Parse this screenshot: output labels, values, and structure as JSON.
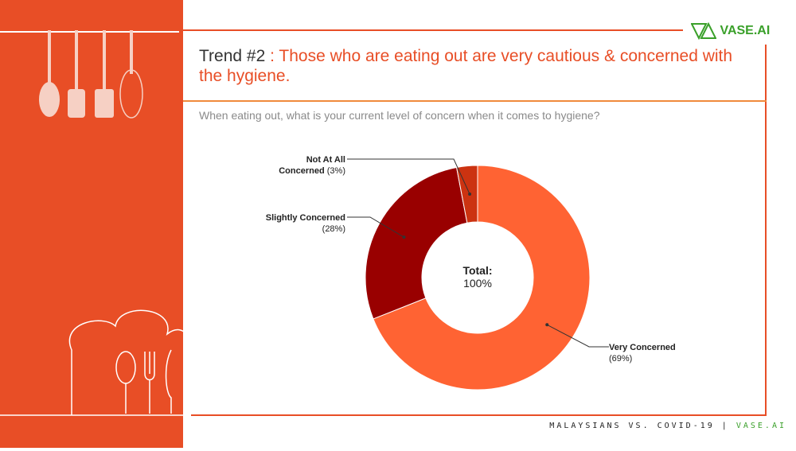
{
  "header": {
    "trend": "Trend #2",
    "headline": ": Those who are eating out are very cautious & concerned with the hygiene.",
    "question": "When eating out, what is your current level of concern when it comes to hygiene?"
  },
  "logo": {
    "text": "VASE.AI"
  },
  "footer": {
    "left": "MALAYSIANS VS. COVID-19 |",
    "right": "VASE.AI"
  },
  "colors": {
    "accent": "#E84E26",
    "very": "#FF6333",
    "slightly": "#990000",
    "not": "#CC3311",
    "brand": "#3aa02a"
  },
  "chart_data": {
    "type": "pie",
    "subtype": "donut",
    "center_label": "Total:",
    "center_value": "100%",
    "slices": [
      {
        "name": "Very Concerned",
        "value": 69,
        "label": "(69%)"
      },
      {
        "name": "Slightly Concerned",
        "value": 28,
        "label": "(28%)"
      },
      {
        "name": "Not At All Concerned",
        "value": 3,
        "label": "(3%)",
        "name_line1": "Not At All",
        "name_line2": "Concerned"
      }
    ]
  }
}
